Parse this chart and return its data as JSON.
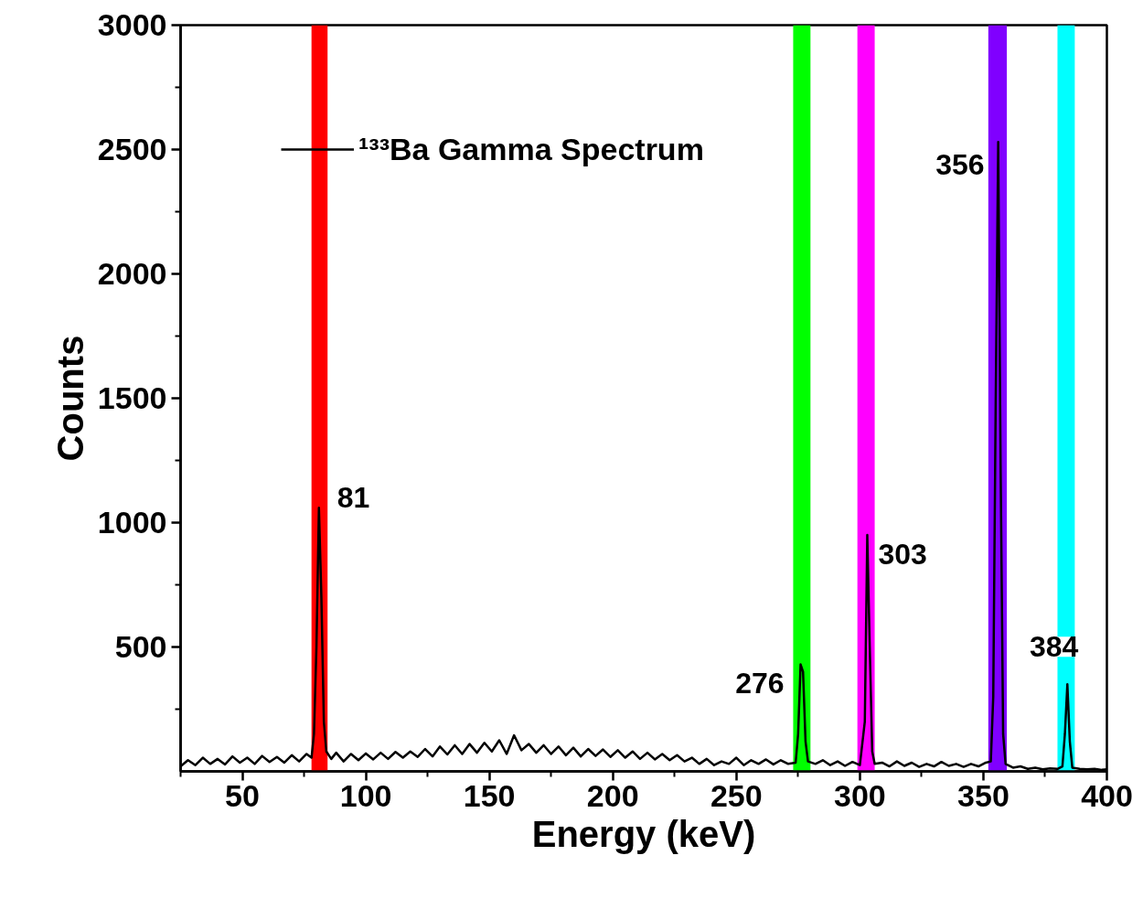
{
  "chart_data": {
    "type": "line",
    "xlabel": "Energy (keV)",
    "ylabel": "Counts",
    "xlim": [
      25,
      400
    ],
    "ylim": [
      0,
      3000
    ],
    "xticks": [
      50,
      100,
      150,
      200,
      250,
      300,
      350,
      400
    ],
    "yticks": [
      500,
      1000,
      1500,
      2000,
      2500,
      3000
    ],
    "grid": false,
    "legend": "top left",
    "marker": "none",
    "line_style": "solid",
    "series": [
      {
        "name": "¹³³Ba Gamma Spectrum",
        "color": "#000000",
        "x": [
          25,
          28,
          31,
          34,
          37,
          40,
          43,
          46,
          49,
          52,
          55,
          58,
          61,
          64,
          67,
          70,
          73,
          76,
          78,
          79,
          80,
          81,
          82,
          83,
          84,
          86,
          88,
          91,
          94,
          97,
          100,
          103,
          106,
          109,
          112,
          115,
          118,
          121,
          124,
          127,
          130,
          133,
          136,
          139,
          142,
          145,
          148,
          151,
          154,
          157,
          160,
          163,
          166,
          169,
          172,
          175,
          178,
          181,
          184,
          187,
          190,
          193,
          196,
          199,
          202,
          205,
          208,
          211,
          214,
          217,
          220,
          223,
          226,
          229,
          232,
          235,
          238,
          241,
          244,
          247,
          250,
          253,
          256,
          259,
          262,
          265,
          268,
          271,
          274,
          275,
          276,
          277,
          278,
          279,
          282,
          285,
          288,
          291,
          294,
          297,
          300,
          302,
          303,
          304,
          305,
          306,
          309,
          312,
          315,
          318,
          321,
          324,
          327,
          330,
          333,
          336,
          339,
          342,
          345,
          348,
          351,
          353,
          354,
          355,
          356,
          357,
          358,
          359,
          362,
          365,
          368,
          371,
          374,
          377,
          380,
          382,
          383,
          384,
          385,
          386,
          389,
          392,
          395,
          398,
          400
        ],
        "values": [
          20,
          45,
          25,
          55,
          30,
          50,
          28,
          60,
          35,
          55,
          30,
          62,
          38,
          58,
          35,
          65,
          40,
          70,
          55,
          150,
          500,
          1060,
          700,
          200,
          80,
          50,
          75,
          40,
          70,
          45,
          72,
          48,
          75,
          50,
          78,
          55,
          80,
          58,
          90,
          60,
          100,
          68,
          105,
          70,
          110,
          75,
          115,
          80,
          125,
          70,
          145,
          85,
          110,
          75,
          105,
          70,
          100,
          65,
          95,
          60,
          90,
          62,
          88,
          58,
          85,
          55,
          80,
          50,
          75,
          48,
          70,
          45,
          65,
          40,
          55,
          30,
          50,
          25,
          40,
          30,
          55,
          25,
          45,
          30,
          48,
          28,
          45,
          30,
          35,
          150,
          430,
          400,
          120,
          40,
          30,
          45,
          25,
          40,
          22,
          38,
          25,
          200,
          950,
          500,
          80,
          30,
          35,
          20,
          40,
          22,
          35,
          18,
          30,
          20,
          38,
          22,
          30,
          18,
          30,
          20,
          35,
          40,
          300,
          1500,
          2530,
          1200,
          150,
          30,
          15,
          20,
          10,
          15,
          8,
          12,
          10,
          20,
          150,
          350,
          120,
          15,
          10,
          8,
          10,
          6,
          8
        ]
      }
    ],
    "bands": [
      {
        "axis": "x",
        "from": 78,
        "to": 84.5,
        "color": "#ff0000"
      },
      {
        "axis": "x",
        "from": 273,
        "to": 280,
        "color": "#00ff00"
      },
      {
        "axis": "x",
        "from": 299,
        "to": 306,
        "color": "#ff00ff"
      },
      {
        "axis": "x",
        "from": 352,
        "to": 359.5,
        "color": "#8000ff"
      },
      {
        "axis": "x",
        "from": 380,
        "to": 387,
        "color": "#00ffff"
      }
    ],
    "annotations": [
      {
        "text": "81",
        "x": 81,
        "y": 1060
      },
      {
        "text": "276",
        "x": 276,
        "y": 430
      },
      {
        "text": "303",
        "x": 303,
        "y": 950
      },
      {
        "text": "356",
        "x": 356,
        "y": 2530
      },
      {
        "text": "384",
        "x": 384,
        "y": 350
      }
    ]
  }
}
